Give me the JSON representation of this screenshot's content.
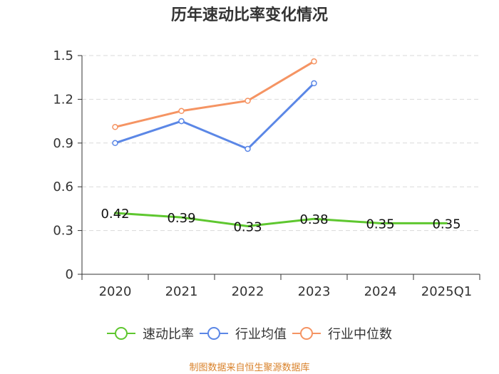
{
  "chart_data": {
    "type": "line",
    "title": "历年速动比率变化情况",
    "categories": [
      "2020",
      "2021",
      "2022",
      "2023",
      "2024",
      "2025Q1"
    ],
    "ylim": [
      0,
      1.5
    ],
    "yticks": [
      "0",
      "0.3",
      "0.6",
      "0.9",
      "1.2",
      "1.5"
    ],
    "grid": true,
    "legend_position": "bottom",
    "series": [
      {
        "name": "速动比率",
        "color": "#5ec72f",
        "values": [
          0.42,
          0.39,
          0.33,
          0.38,
          0.35,
          0.35
        ],
        "labels": [
          "0.42",
          "0.39",
          "0.33",
          "0.38",
          "0.35",
          "0.35"
        ]
      },
      {
        "name": "行业均值",
        "color": "#5b87e6",
        "values": [
          0.9,
          1.05,
          0.86,
          1.31,
          null,
          null
        ]
      },
      {
        "name": "行业中位数",
        "color": "#f59463",
        "values": [
          1.01,
          1.12,
          1.19,
          1.46,
          null,
          null
        ]
      }
    ],
    "source": "制图数据来自恒生聚源数据库"
  }
}
